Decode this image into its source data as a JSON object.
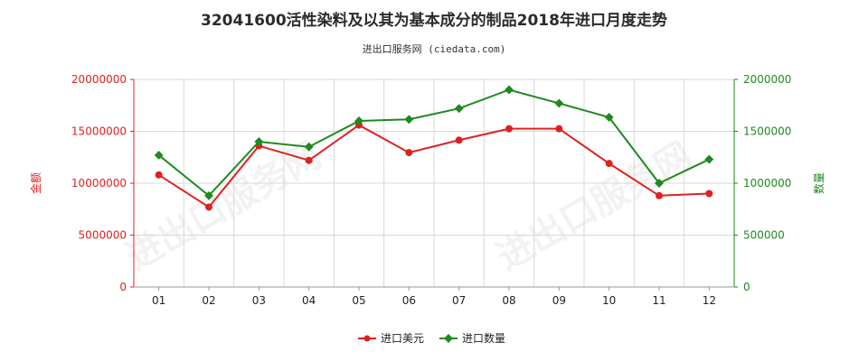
{
  "chart_data": {
    "type": "line",
    "title": "32041600活性染料及以其为基本成分的制品2018年进口月度走势",
    "subtitle": "进出口服务网 (ciedata.com)",
    "categories": [
      "01",
      "02",
      "03",
      "04",
      "05",
      "06",
      "07",
      "08",
      "09",
      "10",
      "11",
      "12"
    ],
    "y_left": {
      "label": "金额",
      "range": [
        0,
        20000000
      ],
      "ticks": [
        0,
        5000000,
        10000000,
        15000000,
        20000000
      ],
      "tick_labels": [
        "0",
        "5000000",
        "10000000",
        "15000000",
        "20000000"
      ]
    },
    "y_right": {
      "label": "数量",
      "range": [
        0,
        2000000
      ],
      "ticks": [
        0,
        500000,
        1000000,
        1500000,
        2000000
      ],
      "tick_labels": [
        "0",
        "500000",
        "1000000",
        "1500000",
        "2000000"
      ]
    },
    "series": [
      {
        "name": "进口美元",
        "axis": "left",
        "color": "#e02020",
        "values": [
          10800000,
          7700000,
          13600000,
          12200000,
          15600000,
          12950000,
          14150000,
          15250000,
          15250000,
          11900000,
          8800000,
          9000000
        ]
      },
      {
        "name": "进口数量",
        "axis": "right",
        "color": "#1e8a1e",
        "values": [
          1270000,
          880000,
          1400000,
          1350000,
          1600000,
          1615000,
          1720000,
          1900000,
          1770000,
          1635000,
          1000000,
          1230000
        ]
      }
    ],
    "grid": true,
    "legend_position": "bottom-center",
    "watermark": "进出口服务网"
  }
}
